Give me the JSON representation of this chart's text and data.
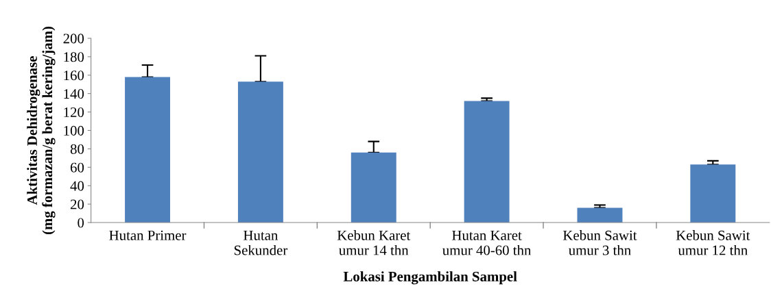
{
  "chart_data": {
    "type": "bar",
    "xlabel": "Lokasi Pengambilan Sampel",
    "ylabel": "Aktivitas Dehidrogenase\n(mg formazan/g berat kering/jam)",
    "categories": [
      "Hutan Primer",
      "Hutan\nSekunder",
      "Kebun Karet\numur 14 thn",
      "Hutan Karet\numur 40-60 thn",
      "Kebun Sawit\numur 3 thn",
      "Kebun Sawit\numur 12 thn"
    ],
    "values": [
      158,
      153,
      76,
      132,
      16,
      63
    ],
    "errors": [
      [
        158,
        171
      ],
      [
        153,
        181
      ],
      [
        76,
        88
      ],
      [
        132,
        135
      ],
      [
        16,
        19
      ],
      [
        63,
        67
      ]
    ],
    "color": "#4f81bd",
    "ylim": [
      0,
      200
    ],
    "yticks": [
      0,
      20,
      40,
      60,
      80,
      100,
      120,
      140,
      160,
      180,
      200
    ],
    "grid": false,
    "legend": false
  }
}
